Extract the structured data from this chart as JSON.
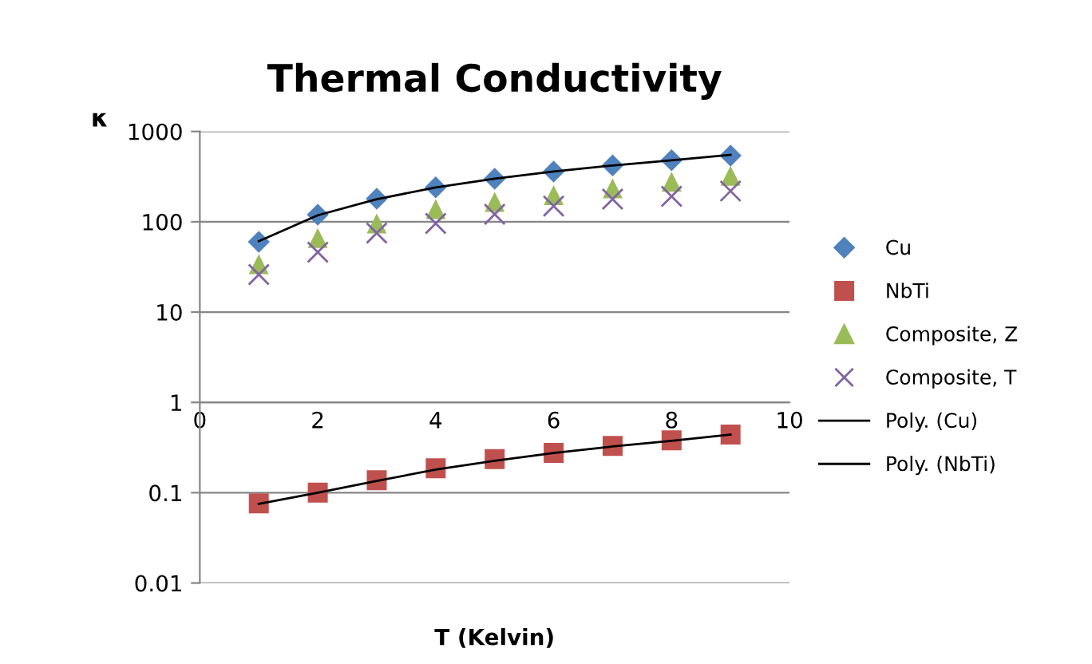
{
  "chart_data": {
    "type": "scatter",
    "title": "Thermal Conductivity",
    "xlabel": "T (Kelvin)",
    "ylabel": "κ",
    "x": [
      1,
      2,
      3,
      4,
      5,
      6,
      7,
      8,
      9
    ],
    "series": [
      {
        "name": "Cu",
        "color": "#4f81bd",
        "marker": "diamond",
        "values": [
          60,
          120,
          180,
          240,
          300,
          360,
          420,
          480,
          540
        ]
      },
      {
        "name": "NbTi",
        "color": "#c0504d",
        "marker": "square",
        "values": [
          0.076,
          0.1,
          0.137,
          0.186,
          0.236,
          0.276,
          0.33,
          0.38,
          0.44
        ]
      },
      {
        "name": "Composite, Z",
        "color": "#9bbb59",
        "marker": "triangle",
        "values": [
          34,
          66,
          96,
          138,
          166,
          197,
          235,
          277,
          323
        ]
      },
      {
        "name": "Composite, T",
        "color": "#8064a2",
        "marker": "cross",
        "values": [
          26,
          46,
          75,
          96,
          121,
          149,
          178,
          191,
          219
        ]
      },
      {
        "name": "Poly. (Cu)",
        "type": "line",
        "color": "#000000",
        "marker": "none",
        "line_style": "solid",
        "x": [
          1,
          2,
          3,
          4,
          5,
          6,
          7,
          8,
          9
        ],
        "values": [
          61,
          118,
          178,
          240,
          300,
          360,
          420,
          480,
          550
        ]
      },
      {
        "name": "Poly. (NbTi)",
        "type": "line",
        "color": "#000000",
        "marker": "none",
        "line_style": "solid",
        "x": [
          1,
          2,
          3,
          4,
          5,
          6,
          7,
          8,
          9
        ],
        "values": [
          0.075,
          0.1,
          0.135,
          0.18,
          0.225,
          0.275,
          0.325,
          0.375,
          0.44
        ]
      }
    ],
    "log": "y",
    "xlim": [
      0,
      10
    ],
    "xticks": [
      0,
      2,
      4,
      6,
      8,
      10
    ],
    "ylim": [
      0.01,
      1000
    ],
    "yticks": [
      0.01,
      0.1,
      1,
      10,
      100,
      1000
    ],
    "grid": "y",
    "legend": "right"
  }
}
